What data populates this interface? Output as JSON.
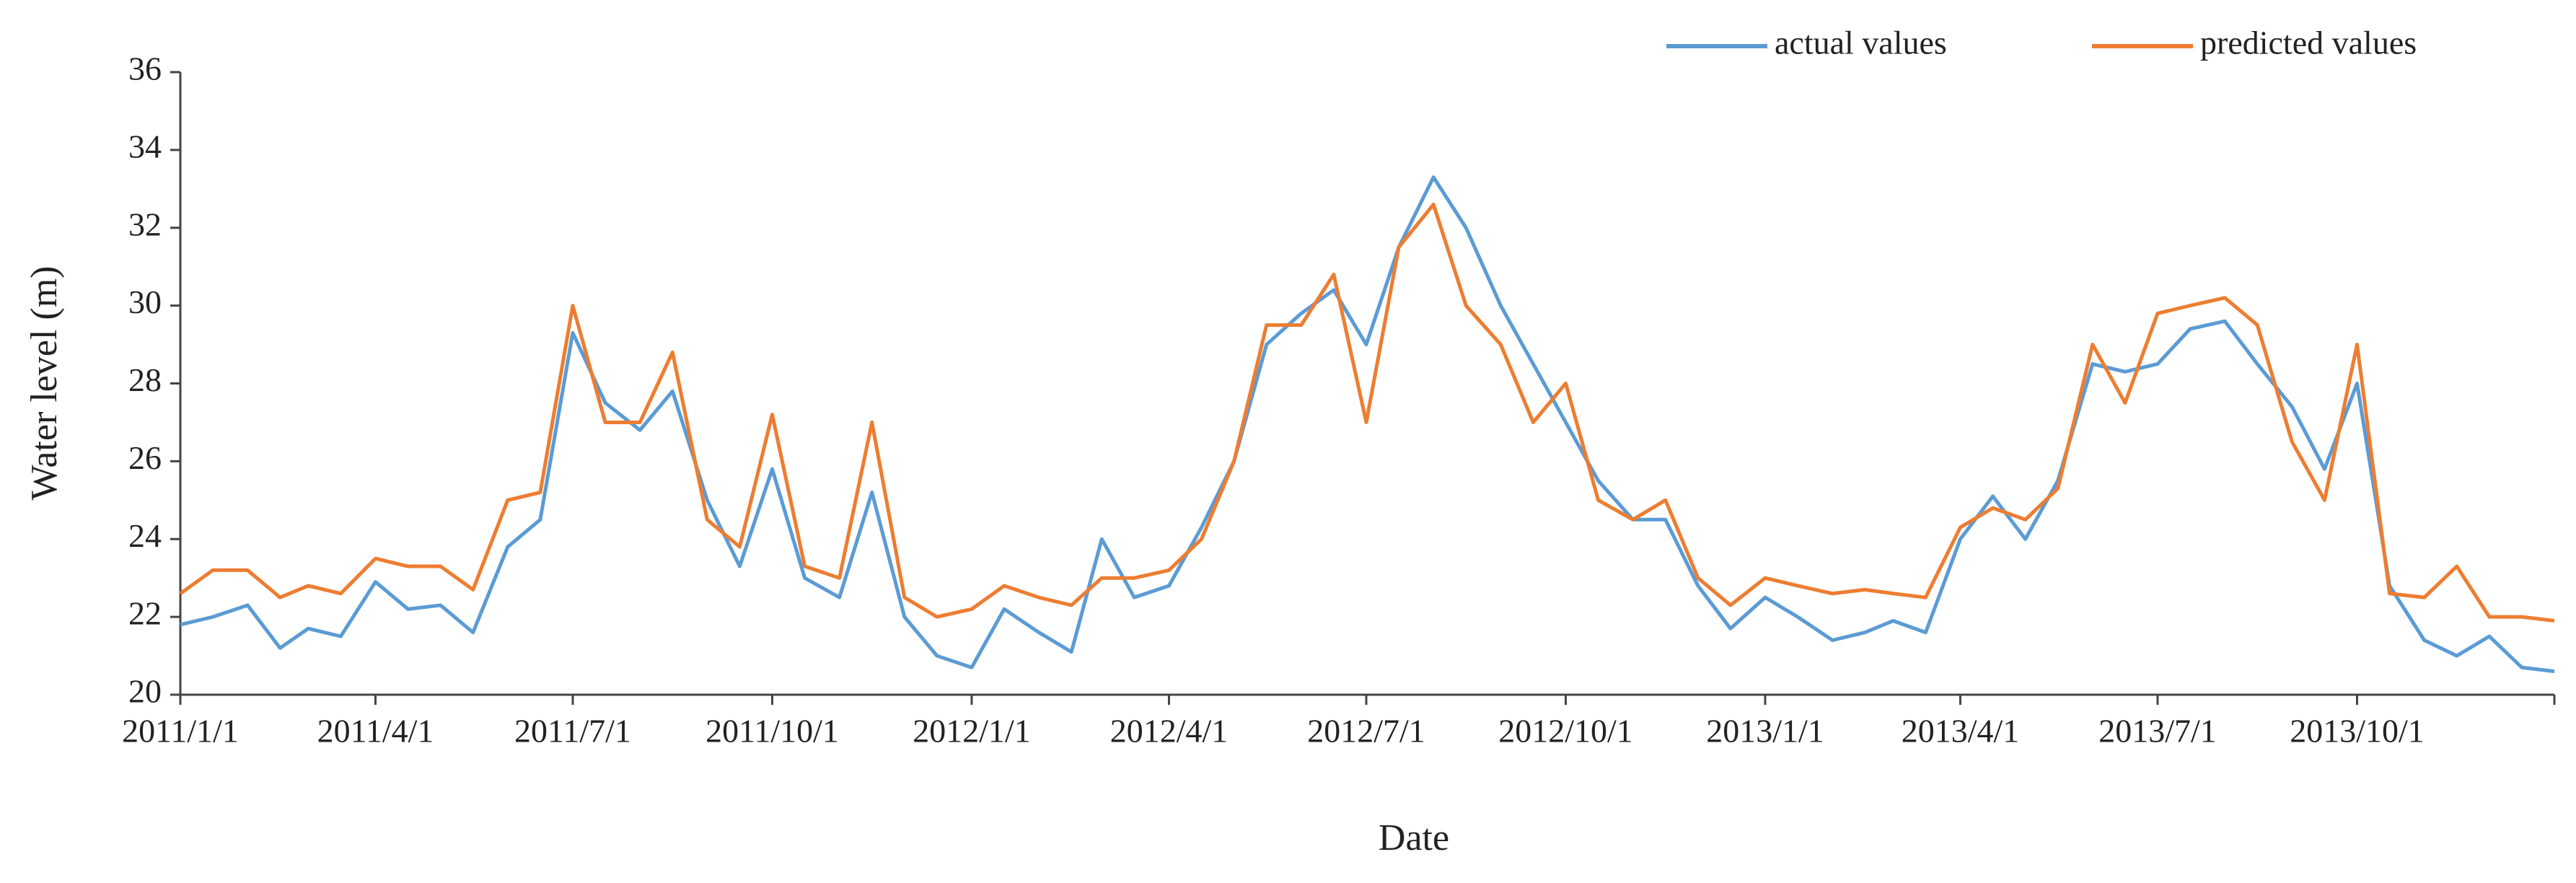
{
  "chart_data": {
    "type": "line",
    "xlabel": "Date",
    "ylabel": "Water level (m)",
    "x": [
      "2011/1/1",
      "2011/1/16",
      "2011/2/1",
      "2011/2/16",
      "2011/3/1",
      "2011/3/16",
      "2011/4/1",
      "2011/4/16",
      "2011/5/1",
      "2011/5/16",
      "2011/6/1",
      "2011/6/16",
      "2011/7/1",
      "2011/7/16",
      "2011/8/1",
      "2011/8/16",
      "2011/9/1",
      "2011/9/16",
      "2011/10/1",
      "2011/10/16",
      "2011/11/1",
      "2011/11/16",
      "2011/12/1",
      "2011/12/16",
      "2012/1/1",
      "2012/1/16",
      "2012/2/1",
      "2012/2/16",
      "2012/3/1",
      "2012/3/16",
      "2012/4/1",
      "2012/4/16",
      "2012/5/1",
      "2012/5/16",
      "2012/6/1",
      "2012/6/16",
      "2012/7/1",
      "2012/7/16",
      "2012/8/1",
      "2012/8/16",
      "2012/9/1",
      "2012/9/16",
      "2012/10/1",
      "2012/10/16",
      "2012/11/1",
      "2012/11/16",
      "2012/12/1",
      "2012/12/16",
      "2013/1/1",
      "2013/1/16",
      "2013/2/1",
      "2013/2/16",
      "2013/3/1",
      "2013/3/16",
      "2013/4/1",
      "2013/4/16",
      "2013/5/1",
      "2013/5/16",
      "2013/6/1",
      "2013/6/16",
      "2013/7/1",
      "2013/7/16",
      "2013/8/1",
      "2013/8/16",
      "2013/9/1",
      "2013/9/16",
      "2013/10/1",
      "2013/10/16",
      "2013/11/1",
      "2013/11/16",
      "2013/12/1",
      "2013/12/16",
      "2013/12/31"
    ],
    "series": [
      {
        "name": "actual values",
        "color": "#5b9bd5",
        "values": [
          21.8,
          22.0,
          22.3,
          21.2,
          21.7,
          21.5,
          22.9,
          22.2,
          22.3,
          21.6,
          23.8,
          24.5,
          29.3,
          27.5,
          26.8,
          27.8,
          25.0,
          23.3,
          25.8,
          23.0,
          22.5,
          25.2,
          22.0,
          21.0,
          20.7,
          22.2,
          21.6,
          21.1,
          24.0,
          22.5,
          22.8,
          24.3,
          26.0,
          29.0,
          29.8,
          30.4,
          29.0,
          31.5,
          33.3,
          32.0,
          30.0,
          28.5,
          27.0,
          25.5,
          24.5,
          24.5,
          22.8,
          21.7,
          22.5,
          22.0,
          21.4,
          21.6,
          21.9,
          21.6,
          24.0,
          25.1,
          24.0,
          25.5,
          28.5,
          28.3,
          28.5,
          29.4,
          29.6,
          28.5,
          27.4,
          25.8,
          28.0,
          22.8,
          21.4,
          21.0,
          21.5,
          20.7,
          20.6
        ]
      },
      {
        "name": "predicted values",
        "color": "#ed7d31",
        "values": [
          22.6,
          23.2,
          23.2,
          22.5,
          22.8,
          22.6,
          23.5,
          23.3,
          23.3,
          22.7,
          25.0,
          25.2,
          30.0,
          27.0,
          27.0,
          28.8,
          24.5,
          23.8,
          27.2,
          23.3,
          23.0,
          27.0,
          22.5,
          22.0,
          22.2,
          22.8,
          22.5,
          22.3,
          23.0,
          23.0,
          23.2,
          24.0,
          26.0,
          29.5,
          29.5,
          30.8,
          27.0,
          31.5,
          32.6,
          30.0,
          29.0,
          27.0,
          28.0,
          25.0,
          24.5,
          25.0,
          23.0,
          22.3,
          23.0,
          22.8,
          22.6,
          22.7,
          22.6,
          22.5,
          24.3,
          24.8,
          24.5,
          25.3,
          29.0,
          27.5,
          29.8,
          30.0,
          30.2,
          29.5,
          26.5,
          25.0,
          29.0,
          22.6,
          22.5,
          23.3,
          22.0,
          22.0,
          21.9
        ]
      }
    ],
    "xlim": [
      "2011/1/1",
      "2013/12/31"
    ],
    "xticks": [
      "2011/1/1",
      "2011/4/1",
      "2011/7/1",
      "2011/10/1",
      "2012/1/1",
      "2012/4/1",
      "2012/7/1",
      "2012/10/1",
      "2013/1/1",
      "2013/4/1",
      "2013/7/1",
      "2013/10/1"
    ],
    "ylim": [
      20,
      36
    ],
    "yticks": [
      20,
      22,
      24,
      26,
      28,
      30,
      32,
      34,
      36
    ],
    "grid": false,
    "legend": "top-right"
  }
}
